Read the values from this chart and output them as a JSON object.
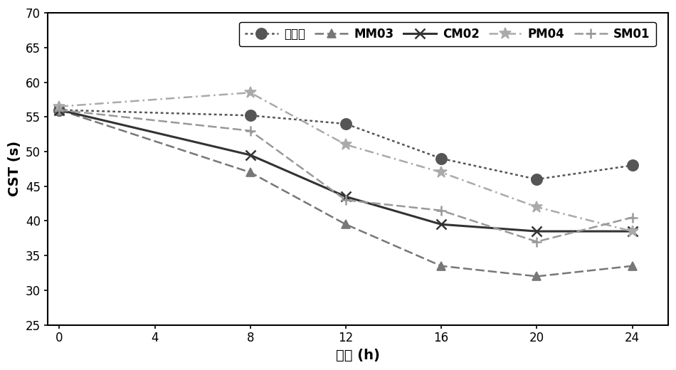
{
  "x": [
    0,
    8,
    12,
    16,
    20,
    24
  ],
  "series_order": [
    "对照组",
    "MM03",
    "CM02",
    "PM04",
    "SM01"
  ],
  "series": {
    "对照组": {
      "y": [
        56.0,
        55.2,
        54.0,
        49.0,
        46.0,
        48.0
      ],
      "color": "#555555",
      "marker": "o",
      "markersize": 11,
      "linewidth": 1.8,
      "label": "对照组"
    },
    "MM03": {
      "y": [
        56.0,
        47.0,
        39.5,
        33.5,
        32.0,
        33.5
      ],
      "color": "#777777",
      "marker": "^",
      "markersize": 9,
      "linewidth": 1.8,
      "label": "MM03"
    },
    "CM02": {
      "y": [
        56.0,
        49.5,
        43.5,
        39.5,
        38.5,
        38.5
      ],
      "color": "#333333",
      "marker": "x",
      "markersize": 10,
      "linewidth": 2.2,
      "label": "CM02"
    },
    "PM04": {
      "y": [
        56.5,
        58.5,
        51.0,
        47.0,
        42.0,
        38.5
      ],
      "color": "#aaaaaa",
      "marker": "*",
      "markersize": 12,
      "linewidth": 1.8,
      "label": "PM04"
    },
    "SM01": {
      "y": [
        56.0,
        53.0,
        43.0,
        41.5,
        37.0,
        40.5
      ],
      "color": "#999999",
      "marker": "+",
      "markersize": 10,
      "linewidth": 1.8,
      "label": "SM01"
    }
  },
  "xlabel": "时间 (h)",
  "ylabel": "CST (s)",
  "xlim": [
    -0.5,
    25.5
  ],
  "ylim": [
    25,
    70
  ],
  "xticks": [
    0,
    4,
    8,
    12,
    16,
    20,
    24
  ],
  "yticks": [
    25,
    30,
    35,
    40,
    45,
    50,
    55,
    60,
    65,
    70
  ],
  "legend_fontsize": 12,
  "axis_label_fontsize": 14,
  "tick_fontsize": 12,
  "background_color": "#ffffff"
}
